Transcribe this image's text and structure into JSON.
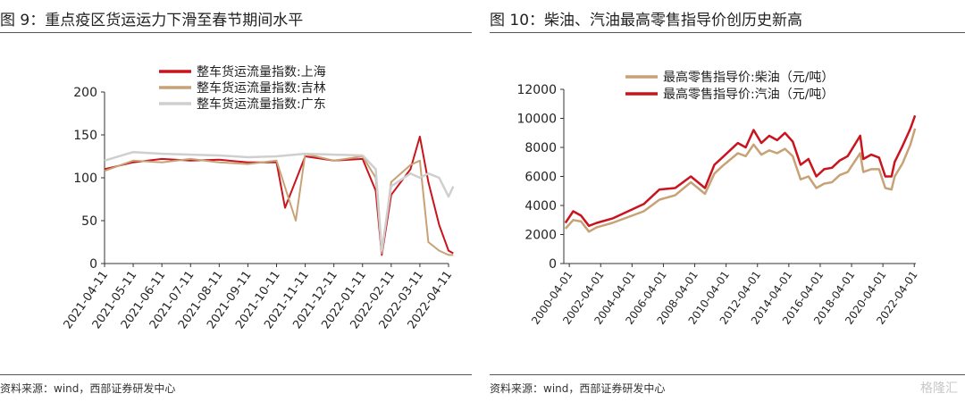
{
  "left": {
    "title": "图 9：重点疫区货运运力下滑至春节期间水平",
    "source": "资料来源：wind，西部证券研发中心"
  },
  "right": {
    "title": "图 10：柴油、汽油最高零售指导价创历史新高",
    "source": "资料来源：wind，西部证券研发中心"
  },
  "watermark": "格隆汇",
  "colors": {
    "red": "#c9141e",
    "tan": "#c8a277",
    "gray": "#cfcfcf",
    "axis": "#333333"
  },
  "chart_data": [
    {
      "type": "line",
      "xlabel": "",
      "ylabel": "",
      "ylim": [
        0,
        200
      ],
      "yticks": [
        0,
        50,
        100,
        150,
        200
      ],
      "x_ticks": [
        "2021-04-11",
        "2021-05-11",
        "2021-06-11",
        "2021-07-11",
        "2021-08-11",
        "2021-09-11",
        "2021-10-11",
        "2021-11-11",
        "2021-12-11",
        "2022-01-11",
        "2022-02-11",
        "2022-03-11",
        "2022-04-11"
      ],
      "legend_position": "top",
      "series": [
        {
          "name": "整车货运流量指数:上海",
          "color": "#c9141e",
          "x": [
            "2021-04-11",
            "2021-05-11",
            "2021-06-11",
            "2021-07-11",
            "2021-08-11",
            "2021-09-11",
            "2021-10-11",
            "2021-10-20",
            "2021-11-11",
            "2021-12-11",
            "2022-01-11",
            "2022-01-25",
            "2022-02-01",
            "2022-02-11",
            "2022-03-01",
            "2022-03-11",
            "2022-03-20",
            "2022-04-01",
            "2022-04-11",
            "2022-04-16"
          ],
          "values": [
            110,
            118,
            122,
            120,
            121,
            118,
            118,
            65,
            125,
            120,
            122,
            85,
            10,
            80,
            110,
            148,
            95,
            45,
            15,
            12
          ]
        },
        {
          "name": "整车货运流量指数:吉林",
          "color": "#c8a277",
          "x": [
            "2021-04-11",
            "2021-05-11",
            "2021-06-11",
            "2021-07-11",
            "2021-08-11",
            "2021-09-11",
            "2021-10-11",
            "2021-11-01",
            "2021-11-11",
            "2021-12-11",
            "2022-01-11",
            "2022-01-25",
            "2022-02-01",
            "2022-02-11",
            "2022-03-01",
            "2022-03-11",
            "2022-03-20",
            "2022-04-01",
            "2022-04-11",
            "2022-04-16"
          ],
          "values": [
            108,
            120,
            118,
            122,
            118,
            116,
            120,
            50,
            128,
            120,
            125,
            100,
            12,
            95,
            115,
            120,
            25,
            15,
            10,
            10
          ]
        },
        {
          "name": "整车货运流量指数:广东",
          "color": "#cfcfcf",
          "x": [
            "2021-04-11",
            "2021-05-11",
            "2021-06-11",
            "2021-07-11",
            "2021-08-11",
            "2021-09-11",
            "2021-10-11",
            "2021-11-11",
            "2021-12-11",
            "2022-01-11",
            "2022-01-25",
            "2022-02-01",
            "2022-02-11",
            "2022-03-01",
            "2022-03-11",
            "2022-03-20",
            "2022-04-01",
            "2022-04-11",
            "2022-04-16"
          ],
          "values": [
            120,
            130,
            128,
            127,
            126,
            124,
            125,
            128,
            127,
            126,
            110,
            15,
            90,
            105,
            100,
            105,
            100,
            78,
            90
          ]
        }
      ]
    },
    {
      "type": "line",
      "xlabel": "",
      "ylabel": "",
      "ylim": [
        0,
        12000
      ],
      "yticks": [
        0,
        2000,
        4000,
        6000,
        8000,
        10000,
        12000
      ],
      "x_ticks": [
        "2000-04-01",
        "2002-04-01",
        "2004-04-01",
        "2006-04-01",
        "2008-04-01",
        "2010-04-01",
        "2012-04-01",
        "2014-04-01",
        "2016-04-01",
        "2018-04-01",
        "2020-04-01",
        "2022-04-01"
      ],
      "legend_position": "top",
      "series": [
        {
          "name": "最高零售指导价:柴油（元/吨）",
          "color": "#c8a277",
          "x": [
            2000.0,
            2000.5,
            2001.0,
            2001.5,
            2002.0,
            2003.0,
            2004.0,
            2005.0,
            2006.0,
            2007.0,
            2008.0,
            2008.9,
            2009.5,
            2010.0,
            2011.0,
            2011.5,
            2012.0,
            2012.5,
            2013.0,
            2013.5,
            2014.0,
            2014.5,
            2015.0,
            2015.5,
            2016.0,
            2016.5,
            2017.0,
            2017.5,
            2018.0,
            2018.8,
            2019.0,
            2019.5,
            2020.0,
            2020.4,
            2020.8,
            2021.0,
            2021.5,
            2022.0,
            2022.3
          ],
          "values": [
            2400,
            3000,
            2900,
            2200,
            2500,
            2800,
            3200,
            3600,
            4400,
            4700,
            5600,
            4800,
            6200,
            6700,
            7600,
            7400,
            8200,
            7500,
            7800,
            7600,
            7900,
            7400,
            5800,
            6000,
            5200,
            5500,
            5600,
            6100,
            6300,
            7600,
            6300,
            6500,
            6500,
            5200,
            5100,
            6000,
            6900,
            8200,
            9300
          ]
        },
        {
          "name": "最高零售指导价:汽油（元/吨）",
          "color": "#c9141e",
          "x": [
            2000.0,
            2000.5,
            2001.0,
            2001.5,
            2002.0,
            2003.0,
            2004.0,
            2005.0,
            2006.0,
            2007.0,
            2008.0,
            2008.9,
            2009.5,
            2010.0,
            2011.0,
            2011.5,
            2012.0,
            2012.5,
            2013.0,
            2013.5,
            2014.0,
            2014.5,
            2015.0,
            2015.5,
            2016.0,
            2016.5,
            2017.0,
            2017.5,
            2018.0,
            2018.8,
            2019.0,
            2019.5,
            2020.0,
            2020.4,
            2020.8,
            2021.0,
            2021.5,
            2022.0,
            2022.3
          ],
          "values": [
            2800,
            3600,
            3300,
            2600,
            2800,
            3100,
            3600,
            4100,
            5100,
            5200,
            6000,
            5200,
            6800,
            7300,
            8300,
            8000,
            9200,
            8300,
            8800,
            8500,
            9000,
            8400,
            6800,
            7200,
            6000,
            6500,
            6600,
            7100,
            7400,
            8800,
            7200,
            7500,
            7300,
            6000,
            6000,
            7000,
            8100,
            9300,
            10200
          ]
        }
      ]
    }
  ]
}
